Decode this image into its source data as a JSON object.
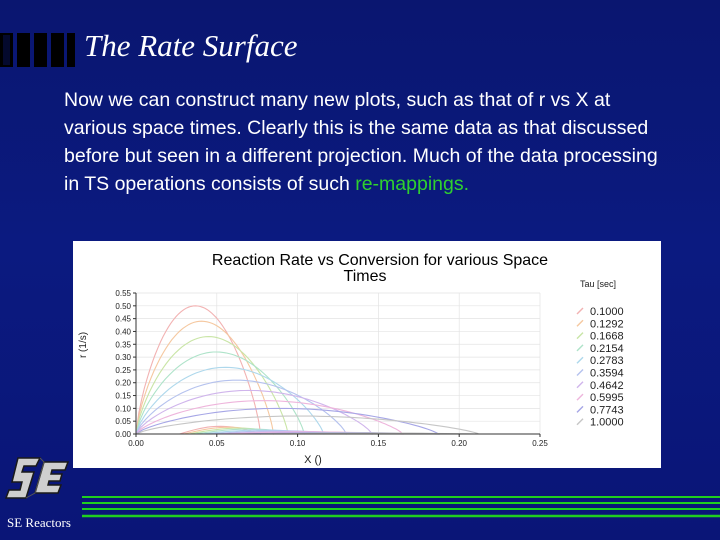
{
  "slide": {
    "title": "The Rate Surface",
    "body_main": "Now we can construct many new plots, such as that of r vs X at various space times. Clearly this is the same data as that discussed before but seen in a different projection. Much of the data processing in TS operations consists of such ",
    "body_highlight": "re-mappings.",
    "footer": "SE Reactors",
    "colors": {
      "background": "#0b1a80",
      "highlight": "#2fd02f",
      "footer_lines": "#1fd01f"
    }
  },
  "chart_data": {
    "type": "line",
    "title_line1": "Reaction Rate vs Conversion for various Space",
    "title_line2": "Times",
    "xlabel": "X ()",
    "ylabel": "r (1/s)",
    "legend_title": "Tau [sec]",
    "legend_placement": "right",
    "xlim": [
      0,
      0.25
    ],
    "ylim": [
      0,
      0.55
    ],
    "xticks": [
      "0.00",
      "0.05",
      "0.10",
      "0.15",
      "0.20",
      "0.25"
    ],
    "yticks": [
      "0.00",
      "0.05",
      "0.10",
      "0.15",
      "0.20",
      "0.25",
      "0.30",
      "0.35",
      "0.40",
      "0.45",
      "0.50",
      "0.55"
    ],
    "series": [
      {
        "name": "0.1000",
        "color": "#f2b2b2",
        "xmax": 0.077,
        "ymax": 0.5
      },
      {
        "name": "0.1292",
        "color": "#f5c8a0",
        "xmax": 0.085,
        "ymax": 0.44
      },
      {
        "name": "0.1668",
        "color": "#c9e5a6",
        "xmax": 0.094,
        "ymax": 0.38
      },
      {
        "name": "0.2154",
        "color": "#aee3c9",
        "xmax": 0.104,
        "ymax": 0.32
      },
      {
        "name": "0.2783",
        "color": "#aed8ec",
        "xmax": 0.116,
        "ymax": 0.26
      },
      {
        "name": "0.3594",
        "color": "#b5c2ee",
        "xmax": 0.13,
        "ymax": 0.21
      },
      {
        "name": "0.4642",
        "color": "#d0b5ec",
        "xmax": 0.146,
        "ymax": 0.17
      },
      {
        "name": "0.5995",
        "color": "#eeb5dc",
        "xmax": 0.165,
        "ymax": 0.13
      },
      {
        "name": "0.7743",
        "color": "#a6a6e6",
        "xmax": 0.187,
        "ymax": 0.1
      },
      {
        "name": "1.0000",
        "color": "#c6c6c6",
        "xmax": 0.212,
        "ymax": 0.07
      }
    ]
  }
}
